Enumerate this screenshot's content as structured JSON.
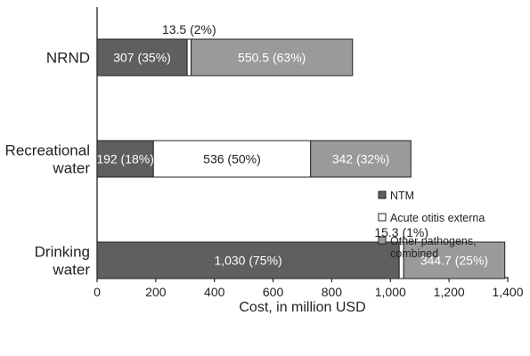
{
  "chart_data": {
    "type": "bar",
    "orientation": "horizontal",
    "stacked": true,
    "categories": [
      "NRND",
      "Recreational water",
      "Drinking water"
    ],
    "category_lines": [
      [
        "NRND"
      ],
      [
        "Recreational",
        "water"
      ],
      [
        "Drinking",
        "water"
      ]
    ],
    "series": [
      {
        "name": "NTM",
        "values": [
          307,
          192,
          1030
        ],
        "labels": [
          "307 (35%)",
          "192 (18%)",
          "1,030 (75%)"
        ]
      },
      {
        "name": "Acute otitis externa",
        "values": [
          13.5,
          536,
          15.3
        ],
        "labels": [
          "13.5 (2%)",
          "536 (50%)",
          "15.3 (1%)"
        ]
      },
      {
        "name": "Other pathogens, combined",
        "name_lines": [
          "Other pathogens,",
          "combined"
        ],
        "values": [
          550.5,
          342,
          344.7
        ],
        "labels": [
          "550.5 (63%)",
          "342 (32%)",
          "344.7 (25%)"
        ]
      }
    ],
    "xlabel": "Cost, in million USD",
    "ylabel": "",
    "title": "",
    "xlim": [
      0,
      1400
    ],
    "ticks": [
      0,
      200,
      400,
      600,
      800,
      1000,
      1200,
      1400
    ],
    "tick_labels": [
      "0",
      "200",
      "400",
      "600",
      "800",
      "1,000",
      "1,200",
      "1,400"
    ],
    "grid": false,
    "legend_position": "right"
  },
  "colors": {
    "ntm": "#5f5f5f",
    "acute_otitis_externa": "#ffffff",
    "other_pathogens": "#9a9a9a",
    "axis": "#222222"
  }
}
